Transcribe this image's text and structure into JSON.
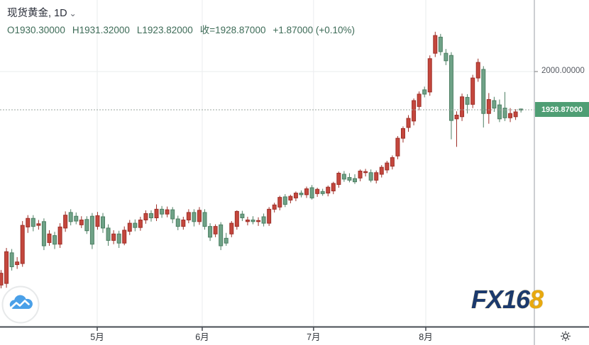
{
  "header": {
    "symbol": "现货黄金",
    "separator": ", ",
    "interval": "1D",
    "caret_icon": "⌄",
    "open": "O1930.30000",
    "high": "H1931.32000",
    "low": "L1923.82000",
    "close": "收=1928.87000",
    "change": "+1.87000 (+0.10%)"
  },
  "price_axis": {
    "tick_label": "2000.00000",
    "tick_value": 2000,
    "last_price_label": "1928.87000",
    "last_price_value": 1928.87
  },
  "time_axis": {
    "months": [
      {
        "label": "5月",
        "index": 17.94
      },
      {
        "label": "6月",
        "index": 37.53
      },
      {
        "label": "7月",
        "index": 58.3
      },
      {
        "label": "8月",
        "index": 79.24
      }
    ]
  },
  "watermark": {
    "fx_part": "FX16",
    "eight_part": "8"
  },
  "colors": {
    "up_fill": "#c4473d",
    "up_border": "#9e2f28",
    "down_fill": "#6fa287",
    "down_border": "#4d7f63",
    "ohlc_text": "#3d6b57",
    "price_tag_bg": "#4f9e74",
    "grid": "#eaecee",
    "axis_line": "#9a9da5",
    "bottom_line": "#474c53",
    "price_line": "#9aa59e",
    "month_text": "#30343a"
  },
  "chart_data": {
    "type": "candlestick",
    "title": "现货黄金, 1D",
    "interval": "1D",
    "last_close": 1928.87,
    "change": 1.87,
    "change_pct": 0.1,
    "up_color_convention": "red-up, green-down",
    "y_axis": {
      "ticks": [
        2000
      ],
      "visible_price_range_approx": [
        1524,
        2133
      ]
    },
    "x_axis": {
      "month_labels": [
        "5月",
        "6月",
        "7月",
        "8月"
      ]
    },
    "candles_ohlc": [
      [
        1603,
        1631,
        1597,
        1625
      ],
      [
        1606,
        1672,
        1598,
        1665
      ],
      [
        1663,
        1670,
        1630,
        1637
      ],
      [
        1641,
        1655,
        1633,
        1646
      ],
      [
        1643,
        1722,
        1637,
        1714
      ],
      [
        1711,
        1733,
        1700,
        1727
      ],
      [
        1727,
        1733,
        1703,
        1712
      ],
      [
        1714,
        1724,
        1706,
        1717
      ],
      [
        1721,
        1727,
        1668,
        1676
      ],
      [
        1682,
        1705,
        1676,
        1698
      ],
      [
        1695,
        1702,
        1670,
        1679
      ],
      [
        1679,
        1718,
        1672,
        1711
      ],
      [
        1709,
        1740,
        1702,
        1733
      ],
      [
        1738,
        1744,
        1714,
        1721
      ],
      [
        1731,
        1738,
        1716,
        1722
      ],
      [
        1715,
        1731,
        1709,
        1724
      ],
      [
        1725,
        1731,
        1698,
        1704
      ],
      [
        1731,
        1737,
        1670,
        1679
      ],
      [
        1712,
        1739,
        1706,
        1732
      ],
      [
        1730,
        1737,
        1700,
        1709
      ],
      [
        1709,
        1716,
        1676,
        1686
      ],
      [
        1686,
        1705,
        1679,
        1698
      ],
      [
        1698,
        1704,
        1672,
        1681
      ],
      [
        1681,
        1712,
        1677,
        1705
      ],
      [
        1703,
        1724,
        1696,
        1718
      ],
      [
        1718,
        1725,
        1703,
        1710
      ],
      [
        1710,
        1730,
        1704,
        1724
      ],
      [
        1724,
        1742,
        1717,
        1736
      ],
      [
        1736,
        1742,
        1721,
        1728
      ],
      [
        1728,
        1753,
        1722,
        1744
      ],
      [
        1744,
        1750,
        1728,
        1735
      ],
      [
        1735,
        1749,
        1729,
        1743
      ],
      [
        1743,
        1748,
        1718,
        1726
      ],
      [
        1726,
        1732,
        1705,
        1712
      ],
      [
        1712,
        1730,
        1706,
        1724
      ],
      [
        1724,
        1744,
        1718,
        1738
      ],
      [
        1738,
        1744,
        1712,
        1721
      ],
      [
        1721,
        1748,
        1715,
        1742
      ],
      [
        1738,
        1744,
        1706,
        1712
      ],
      [
        1712,
        1718,
        1685,
        1692
      ],
      [
        1698,
        1716,
        1692,
        1712
      ],
      [
        1715,
        1720,
        1668,
        1676
      ],
      [
        1690,
        1700,
        1676,
        1681
      ],
      [
        1698,
        1722,
        1692,
        1718
      ],
      [
        1712,
        1742,
        1706,
        1740
      ],
      [
        1735,
        1741,
        1722,
        1728
      ],
      [
        1721,
        1730,
        1714,
        1724
      ],
      [
        1724,
        1731,
        1716,
        1721
      ],
      [
        1721,
        1729,
        1713,
        1723
      ],
      [
        1730,
        1736,
        1712,
        1718
      ],
      [
        1718,
        1748,
        1713,
        1744
      ],
      [
        1744,
        1756,
        1738,
        1752
      ],
      [
        1748,
        1769,
        1742,
        1766
      ],
      [
        1767,
        1772,
        1748,
        1753
      ],
      [
        1761,
        1771,
        1755,
        1768
      ],
      [
        1765,
        1777,
        1759,
        1774
      ],
      [
        1774,
        1779,
        1766,
        1771
      ],
      [
        1771,
        1786,
        1765,
        1782
      ],
      [
        1784,
        1789,
        1762,
        1765
      ],
      [
        1773,
        1784,
        1767,
        1781
      ],
      [
        1777,
        1782,
        1769,
        1773
      ],
      [
        1774,
        1788,
        1768,
        1785
      ],
      [
        1778,
        1795,
        1772,
        1792
      ],
      [
        1790,
        1814,
        1784,
        1811
      ],
      [
        1809,
        1815,
        1795,
        1800
      ],
      [
        1803,
        1811,
        1794,
        1798
      ],
      [
        1801,
        1809,
        1791,
        1795
      ],
      [
        1802,
        1818,
        1796,
        1815
      ],
      [
        1812,
        1819,
        1805,
        1814
      ],
      [
        1812,
        1818,
        1794,
        1798
      ],
      [
        1798,
        1816,
        1792,
        1812
      ],
      [
        1809,
        1826,
        1803,
        1822
      ],
      [
        1817,
        1834,
        1811,
        1830
      ],
      [
        1824,
        1844,
        1818,
        1840
      ],
      [
        1843,
        1880,
        1837,
        1876
      ],
      [
        1876,
        1898,
        1868,
        1894
      ],
      [
        1896,
        1919,
        1888,
        1913
      ],
      [
        1908,
        1950,
        1900,
        1946
      ],
      [
        1935,
        1963,
        1928,
        1958
      ],
      [
        1966,
        1972,
        1952,
        1958
      ],
      [
        1962,
        2030,
        1955,
        2024
      ],
      [
        2034,
        2074,
        2027,
        2067
      ],
      [
        2064,
        2070,
        2030,
        2037
      ],
      [
        2034,
        2042,
        2012,
        2020
      ],
      [
        2030,
        2036,
        1874,
        1909
      ],
      [
        1912,
        1926,
        1860,
        1919
      ],
      [
        1916,
        1959,
        1908,
        1953
      ],
      [
        1952,
        1958,
        1922,
        1939
      ],
      [
        1939,
        1994,
        1932,
        1988
      ],
      [
        1988,
        2024,
        1981,
        2017
      ],
      [
        2004,
        2010,
        1896,
        1922
      ],
      [
        1922,
        1960,
        1903,
        1948
      ],
      [
        1946,
        1953,
        1925,
        1932
      ],
      [
        1938,
        1948,
        1906,
        1912
      ],
      [
        1932,
        1962,
        1908,
        1914
      ],
      [
        1914,
        1932,
        1906,
        1922
      ],
      [
        1916,
        1930,
        1910,
        1925
      ],
      [
        1930.3,
        1931.32,
        1923.82,
        1928.87
      ]
    ]
  }
}
